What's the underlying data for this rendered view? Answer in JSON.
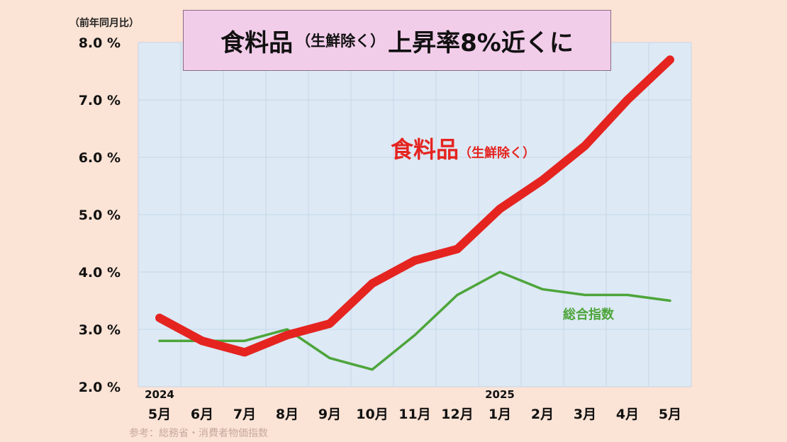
{
  "chart_data": {
    "type": "line",
    "title_main_1": "食料品",
    "title_paren": "（生鮮除く）",
    "title_main_2": "上昇率8%近くに",
    "ylabel": "（前年同月比）",
    "source": "参考：総務省・消費者物価指数",
    "categories": [
      "5月",
      "6月",
      "7月",
      "8月",
      "9月",
      "10月",
      "11月",
      "12月",
      "1月",
      "2月",
      "3月",
      "4月",
      "5月"
    ],
    "year_labels": [
      {
        "index": 0,
        "label": "2024"
      },
      {
        "index": 8,
        "label": "2025"
      }
    ],
    "yticks": [
      "2.0 %",
      "3.0 %",
      "4.0 %",
      "5.0 %",
      "6.0 %",
      "7.0 %",
      "8.0 %"
    ],
    "ylim": [
      2.0,
      8.0
    ],
    "grid": true,
    "series": [
      {
        "name_main": "食料品",
        "name_paren": "（生鮮除く）",
        "color": "#e52420",
        "values": [
          3.2,
          2.8,
          2.6,
          2.9,
          3.1,
          3.8,
          4.2,
          4.4,
          5.1,
          5.6,
          6.2,
          7.0,
          7.7
        ]
      },
      {
        "name_main": "総合指数",
        "color": "#4da53a",
        "values": [
          2.8,
          2.8,
          2.8,
          3.0,
          2.5,
          2.3,
          2.9,
          3.6,
          4.0,
          3.7,
          3.6,
          3.6,
          3.5
        ]
      }
    ]
  },
  "colors": {
    "background": "#fbe3d5",
    "plot_area": "#dde9f5",
    "title_box": "#f2cdea",
    "grid": "#c7d6e6"
  }
}
